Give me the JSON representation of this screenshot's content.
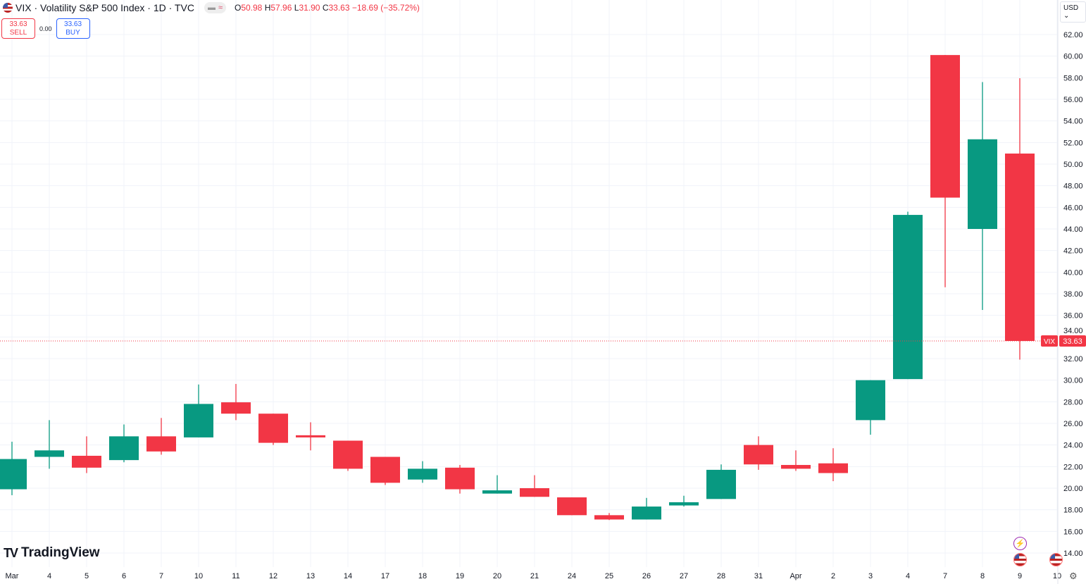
{
  "header": {
    "symbol_title": "VIX · Volatility S&P 500 Index · 1D · TVC",
    "ohlc": {
      "o_label": "O",
      "o": "50.98",
      "h_label": "H",
      "h": "57.96",
      "l_label": "L",
      "l": "31.90",
      "c_label": "C",
      "c": "33.63",
      "change": "−18.69 (−35.72%)"
    },
    "pill_icons": [
      "minus-icon",
      "approx-icon"
    ]
  },
  "trade": {
    "sell_price": "33.63",
    "sell_label": "SELL",
    "spread": "0.00",
    "buy_price": "33.63",
    "buy_label": "BUY"
  },
  "currency": "USD",
  "brand": "TradingView",
  "last_price_label": {
    "symbol": "VIX",
    "price": "33.63"
  },
  "colors": {
    "up": "#089981",
    "down": "#f23645",
    "grid": "#f0f3fa"
  },
  "chart_data": {
    "type": "candlestick",
    "ylim": [
      13,
      63
    ],
    "y_ticks": [
      "14.00",
      "16.00",
      "18.00",
      "20.00",
      "22.00",
      "24.00",
      "26.00",
      "28.00",
      "30.00",
      "32.00",
      "34.00",
      "36.00",
      "38.00",
      "40.00",
      "42.00",
      "44.00",
      "46.00",
      "48.00",
      "50.00",
      "52.00",
      "54.00",
      "56.00",
      "58.00",
      "60.00",
      "62.00"
    ],
    "x_labels": [
      "Mar",
      "4",
      "5",
      "6",
      "7",
      "10",
      "11",
      "12",
      "13",
      "14",
      "17",
      "18",
      "19",
      "20",
      "21",
      "24",
      "25",
      "26",
      "27",
      "28",
      "31",
      "Apr",
      "2",
      "3",
      "4",
      "7",
      "8",
      "9",
      "10"
    ],
    "grid": true,
    "last_price": 33.63,
    "candles": [
      {
        "date": "Mar 3",
        "o": 19.9,
        "h": 24.3,
        "l": 19.35,
        "c": 22.7
      },
      {
        "date": "Mar 4",
        "o": 22.9,
        "h": 26.3,
        "l": 21.8,
        "c": 23.5
      },
      {
        "date": "Mar 5",
        "o": 23.0,
        "h": 24.8,
        "l": 21.4,
        "c": 21.9
      },
      {
        "date": "Mar 6",
        "o": 22.6,
        "h": 25.9,
        "l": 22.4,
        "c": 24.8
      },
      {
        "date": "Mar 7",
        "o": 24.8,
        "h": 26.5,
        "l": 23.1,
        "c": 23.4
      },
      {
        "date": "Mar 10",
        "o": 24.7,
        "h": 29.6,
        "l": 24.7,
        "c": 27.8
      },
      {
        "date": "Mar 11",
        "o": 27.95,
        "h": 29.65,
        "l": 26.3,
        "c": 26.9
      },
      {
        "date": "Mar 12",
        "o": 26.9,
        "h": 26.9,
        "l": 24.0,
        "c": 24.2
      },
      {
        "date": "Mar 13",
        "o": 24.9,
        "h": 26.1,
        "l": 23.5,
        "c": 24.7
      },
      {
        "date": "Mar 14",
        "o": 24.4,
        "h": 24.4,
        "l": 21.6,
        "c": 21.8
      },
      {
        "date": "Mar 17",
        "o": 22.9,
        "h": 22.9,
        "l": 20.3,
        "c": 20.5
      },
      {
        "date": "Mar 18",
        "o": 20.8,
        "h": 22.5,
        "l": 20.5,
        "c": 21.8
      },
      {
        "date": "Mar 19",
        "o": 21.9,
        "h": 22.15,
        "l": 19.5,
        "c": 19.9
      },
      {
        "date": "Mar 20",
        "o": 19.5,
        "h": 21.2,
        "l": 19.5,
        "c": 19.8
      },
      {
        "date": "Mar 21",
        "o": 20.0,
        "h": 21.2,
        "l": 19.2,
        "c": 19.2
      },
      {
        "date": "Mar 24",
        "o": 19.15,
        "h": 19.15,
        "l": 17.5,
        "c": 17.5
      },
      {
        "date": "Mar 25",
        "o": 17.5,
        "h": 17.7,
        "l": 17.05,
        "c": 17.1
      },
      {
        "date": "Mar 26",
        "o": 17.1,
        "h": 19.1,
        "l": 17.1,
        "c": 18.3
      },
      {
        "date": "Mar 27",
        "o": 18.4,
        "h": 19.3,
        "l": 18.3,
        "c": 18.7
      },
      {
        "date": "Mar 28",
        "o": 19.0,
        "h": 22.2,
        "l": 19.0,
        "c": 21.7
      },
      {
        "date": "Mar 31",
        "o": 24.0,
        "h": 24.8,
        "l": 21.7,
        "c": 22.2
      },
      {
        "date": "Apr 1",
        "o": 22.15,
        "h": 23.5,
        "l": 21.6,
        "c": 21.8
      },
      {
        "date": "Apr 2",
        "o": 22.3,
        "h": 23.7,
        "l": 20.65,
        "c": 21.4
      },
      {
        "date": "Apr 3",
        "o": 26.3,
        "h": 30.0,
        "l": 24.95,
        "c": 30.0
      },
      {
        "date": "Apr 4",
        "o": 30.1,
        "h": 45.6,
        "l": 30.1,
        "c": 45.3
      },
      {
        "date": "Apr 7",
        "o": 60.1,
        "h": 60.1,
        "l": 38.6,
        "c": 46.9
      },
      {
        "date": "Apr 8",
        "o": 44.0,
        "h": 57.6,
        "l": 36.5,
        "c": 52.3
      },
      {
        "date": "Apr 9",
        "o": 50.98,
        "h": 57.96,
        "l": 31.9,
        "c": 33.63
      }
    ]
  }
}
